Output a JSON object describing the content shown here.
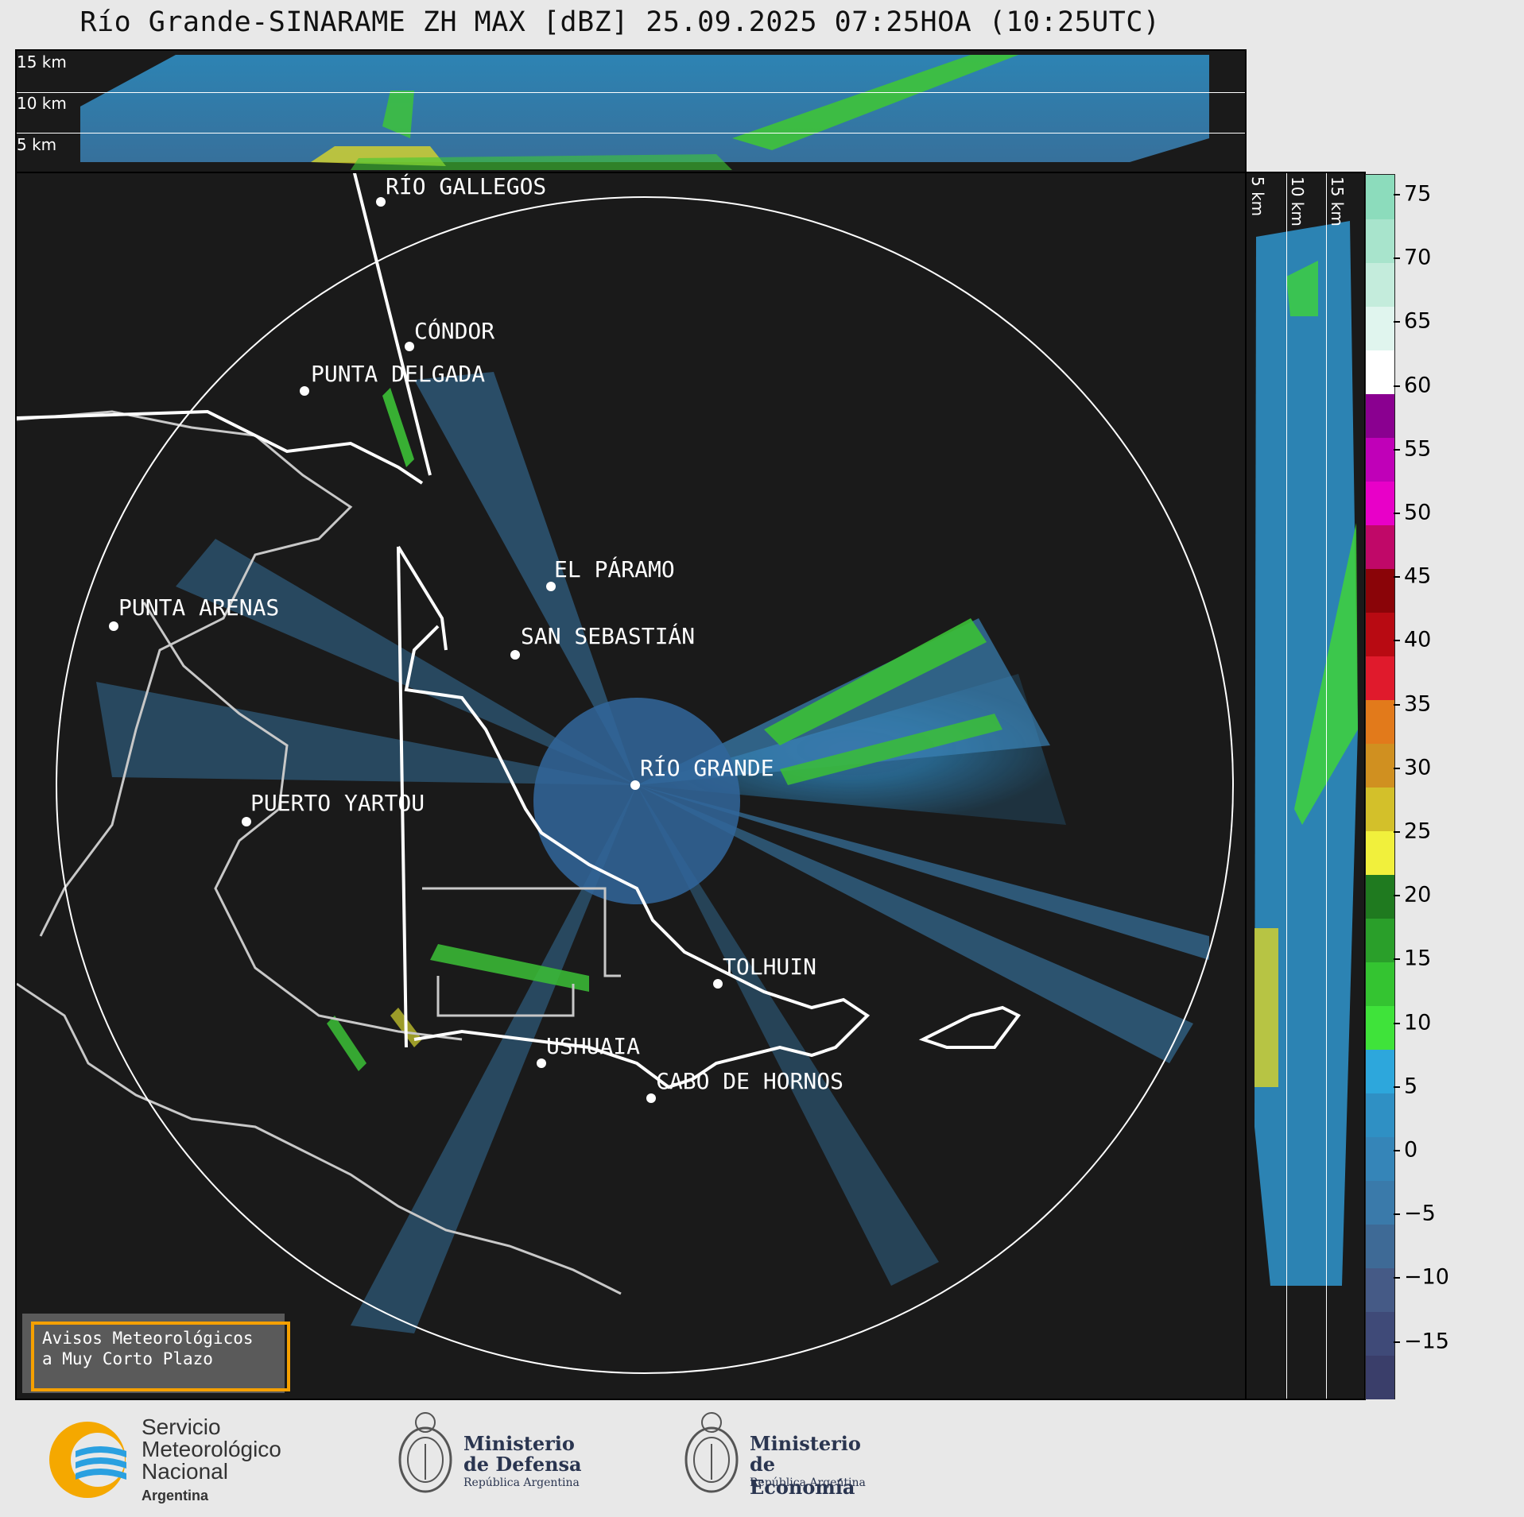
{
  "title": "Río Grande-SINARAME ZH MAX [dBZ] 25.09.2025 07:25HOA (10:25UTC)",
  "altitude_labels": {
    "km15": "15 km",
    "km10": "10 km",
    "km5": "5 km"
  },
  "colorbar": {
    "ticks": [
      "75",
      "70",
      "65",
      "60",
      "55",
      "50",
      "45",
      "40",
      "35",
      "30",
      "25",
      "20",
      "15",
      "10",
      "5",
      "0",
      "−5",
      "−10",
      "−15"
    ],
    "colors": [
      "#3a3e6a",
      "#3f4a78",
      "#455a86",
      "#3e6a96",
      "#3a7aaa",
      "#3585b8",
      "#2f90c4",
      "#2da7dc",
      "#3fe33a",
      "#34c431",
      "#2a9f2a",
      "#1f7a1f",
      "#f1f03c",
      "#d3c02a",
      "#d09020",
      "#e27a1b",
      "#e01a2c",
      "#b80a12",
      "#8a0408",
      "#c00868",
      "#e800c8",
      "#c000b8",
      "#8a0090",
      "#ffffff",
      "#e0f5ee",
      "#c4ecdc",
      "#a8e4cc",
      "#8cdcbc"
    ]
  },
  "cities": [
    {
      "name": "RÍO GALLEGOS"
    },
    {
      "name": "CÓNDOR"
    },
    {
      "name": "PUNTA DELGADA"
    },
    {
      "name": "PUNTA ARENAS"
    },
    {
      "name": "EL PÁRAMO"
    },
    {
      "name": "SAN SEBASTIÁN"
    },
    {
      "name": "RÍO GRANDE"
    },
    {
      "name": "PUERTO YARTOU"
    },
    {
      "name": "TOLHUIN"
    },
    {
      "name": "USHUAIA"
    },
    {
      "name": "CABO DE HORNOS"
    }
  ],
  "notice": {
    "line1": "Avisos Meteorológicos",
    "line2": "a Muy Corto Plazo"
  },
  "logos": {
    "smn": {
      "line1": "Servicio",
      "line2": "Meteorológico",
      "line3": "Nacional",
      "line4": "Argentina"
    },
    "defensa": {
      "line1": "Ministerio",
      "line2": "de Defensa",
      "line3": "República Argentina"
    },
    "economia": {
      "line1": "Ministerio",
      "line2": "de Economía",
      "line3": "República Argentina"
    }
  }
}
